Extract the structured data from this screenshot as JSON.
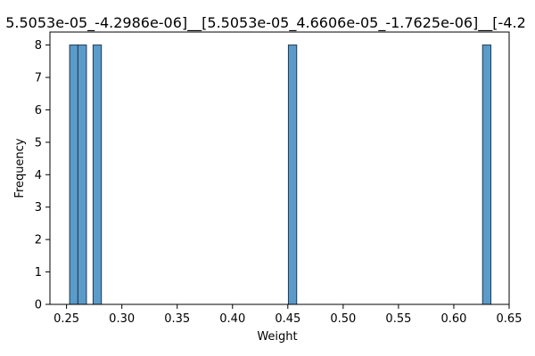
{
  "chart_data": {
    "type": "histogram",
    "title": "5.5053e-05_-4.2986e-06]__[5.5053e-05_4.6606e-05_-1.7625e-06]__[-4.2",
    "xlabel": "Weight",
    "ylabel": "Frequency",
    "xlim": [
      0.235,
      0.65
    ],
    "ylim": [
      0,
      8.4
    ],
    "x_ticks": [
      0.25,
      0.3,
      0.35,
      0.4,
      0.45,
      0.5,
      0.55,
      0.6,
      0.65
    ],
    "x_tick_labels": [
      "0.25",
      "0.30",
      "0.35",
      "0.40",
      "0.45",
      "0.50",
      "0.55",
      "0.60",
      "0.65"
    ],
    "y_ticks": [
      0,
      1,
      2,
      3,
      4,
      5,
      6,
      7,
      8
    ],
    "y_tick_labels": [
      "0",
      "1",
      "2",
      "3",
      "4",
      "5",
      "6",
      "7",
      "8"
    ],
    "bar_color": "#5b9bc9",
    "edge_color": "#1f3b55",
    "bins": [
      {
        "x0": 0.2528,
        "x1": 0.2603,
        "count": 8
      },
      {
        "x0": 0.2603,
        "x1": 0.268,
        "count": 8
      },
      {
        "x0": 0.274,
        "x1": 0.2815,
        "count": 8
      },
      {
        "x0": 0.4505,
        "x1": 0.458,
        "count": 8
      },
      {
        "x0": 0.626,
        "x1": 0.6335,
        "count": 8
      }
    ]
  }
}
